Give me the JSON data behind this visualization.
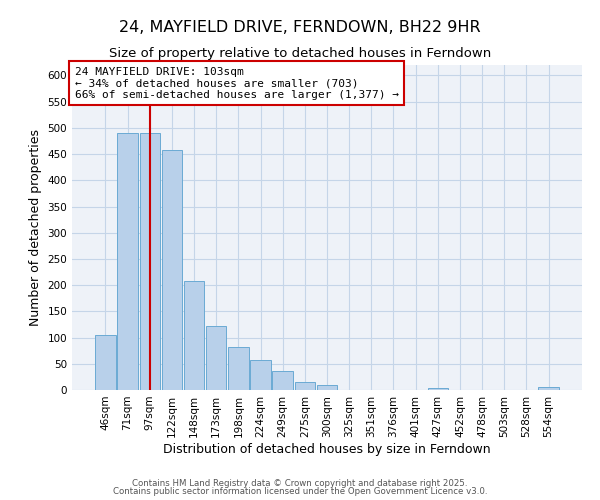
{
  "title": "24, MAYFIELD DRIVE, FERNDOWN, BH22 9HR",
  "subtitle": "Size of property relative to detached houses in Ferndown",
  "xlabel": "Distribution of detached houses by size in Ferndown",
  "ylabel": "Number of detached properties",
  "bar_labels": [
    "46sqm",
    "71sqm",
    "97sqm",
    "122sqm",
    "148sqm",
    "173sqm",
    "198sqm",
    "224sqm",
    "249sqm",
    "275sqm",
    "300sqm",
    "325sqm",
    "351sqm",
    "376sqm",
    "401sqm",
    "427sqm",
    "452sqm",
    "478sqm",
    "503sqm",
    "528sqm",
    "554sqm"
  ],
  "bar_values": [
    105,
    490,
    490,
    457,
    208,
    122,
    82,
    58,
    36,
    15,
    10,
    0,
    0,
    0,
    0,
    4,
    0,
    0,
    0,
    0,
    5
  ],
  "bar_color": "#b8d0ea",
  "bar_edge_color": "#6aaad4",
  "bg_color": "#eef2f8",
  "grid_color": "#c5d5e8",
  "vline_x": 2,
  "vline_color": "#cc0000",
  "annotation_title": "24 MAYFIELD DRIVE: 103sqm",
  "annotation_line1": "← 34% of detached houses are smaller (703)",
  "annotation_line2": "66% of semi-detached houses are larger (1,377) →",
  "annotation_box_color": "#cc0000",
  "ylim": [
    0,
    620
  ],
  "yticks": [
    0,
    50,
    100,
    150,
    200,
    250,
    300,
    350,
    400,
    450,
    500,
    550,
    600
  ],
  "footer1": "Contains HM Land Registry data © Crown copyright and database right 2025.",
  "footer2": "Contains public sector information licensed under the Open Government Licence v3.0.",
  "title_fontsize": 11.5,
  "subtitle_fontsize": 9.5,
  "xlabel_fontsize": 9,
  "ylabel_fontsize": 9,
  "annotation_fontsize": 8,
  "tick_fontsize": 7.5,
  "footer_fontsize": 6.2
}
